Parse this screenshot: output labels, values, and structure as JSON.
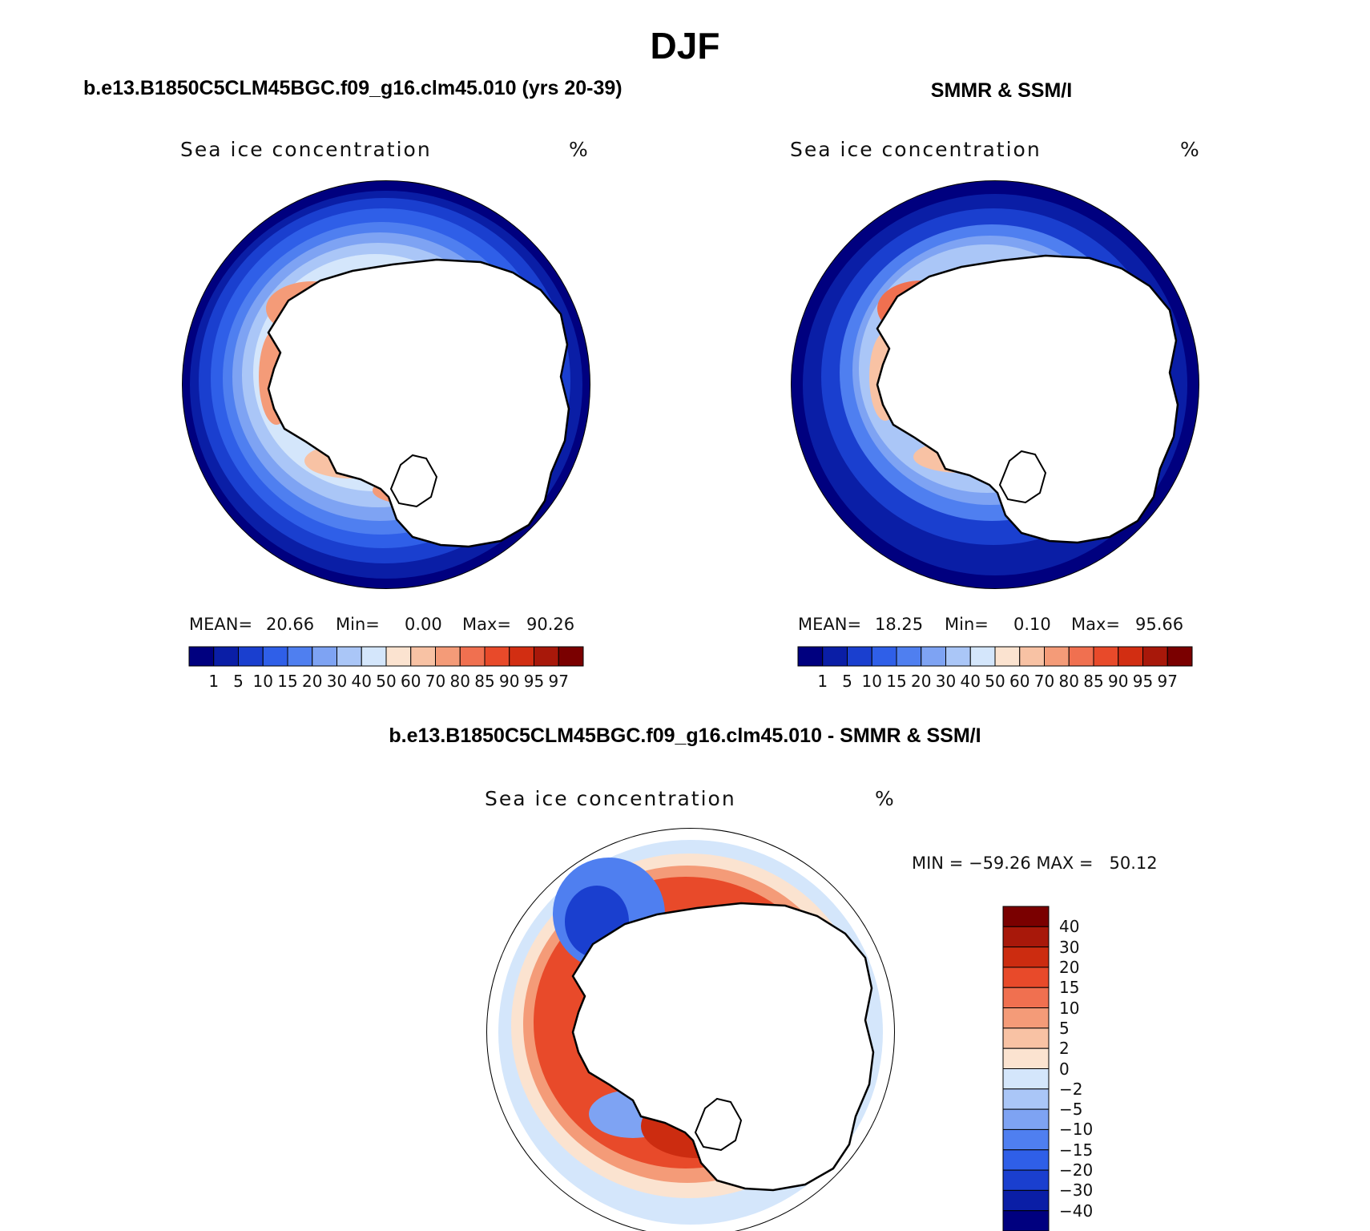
{
  "figure": {
    "title": "DJF",
    "panels": [
      {
        "title": "b.e13.B1850C5CLM45BGC.f09_g16.clm45.010 (yrs 20-39)",
        "variable": "Sea ice concentration",
        "units": "%",
        "stats": {
          "mean_label": "MEAN=",
          "mean": "20.66",
          "min_label": "Min=",
          "min": "0.00",
          "max_label": "Max=",
          "max": "90.26"
        }
      },
      {
        "title": "SMMR & SSM/I",
        "variable": "Sea ice concentration",
        "units": "%",
        "stats": {
          "mean_label": "MEAN=",
          "mean": "18.25",
          "min_label": "Min=",
          "min": "0.10",
          "max_label": "Max=",
          "max": "95.66"
        }
      },
      {
        "title": "b.e13.B1850C5CLM45BGC.f09_g16.clm45.010 - SMMR & SSM/I",
        "variable": "Sea ice concentration",
        "units": "%",
        "stats_text": "MIN = −59.26 MAX =   50.12"
      }
    ]
  },
  "colorbars": {
    "concentration": {
      "levels": [
        "1",
        "5",
        "10",
        "15",
        "20",
        "30",
        "40",
        "50",
        "60",
        "70",
        "80",
        "85",
        "90",
        "95",
        "97"
      ],
      "colors": [
        "#00007f",
        "#0a1ea6",
        "#1a3fcf",
        "#2f5fe8",
        "#4f7ff0",
        "#7ea3f3",
        "#aac6f7",
        "#d4e6fb",
        "#fbe3d0",
        "#f8c2a4",
        "#f49b78",
        "#f07050",
        "#e84a2a",
        "#d22e12",
        "#a8180a",
        "#7a0000"
      ]
    },
    "difference": {
      "levels": [
        "40",
        "30",
        "20",
        "15",
        "10",
        "5",
        "2",
        "0",
        "−2",
        "−5",
        "−10",
        "−15",
        "−20",
        "−30",
        "−40"
      ],
      "colors": [
        "#7a0000",
        "#a8180a",
        "#cc2c10",
        "#e84a2a",
        "#f07050",
        "#f49b78",
        "#f8c2a4",
        "#fbe3d0",
        "#d4e6fb",
        "#aac6f7",
        "#7ea3f3",
        "#4f7ff0",
        "#2f5fe8",
        "#1a3fcf",
        "#0a1ea6",
        "#00007f"
      ]
    }
  }
}
